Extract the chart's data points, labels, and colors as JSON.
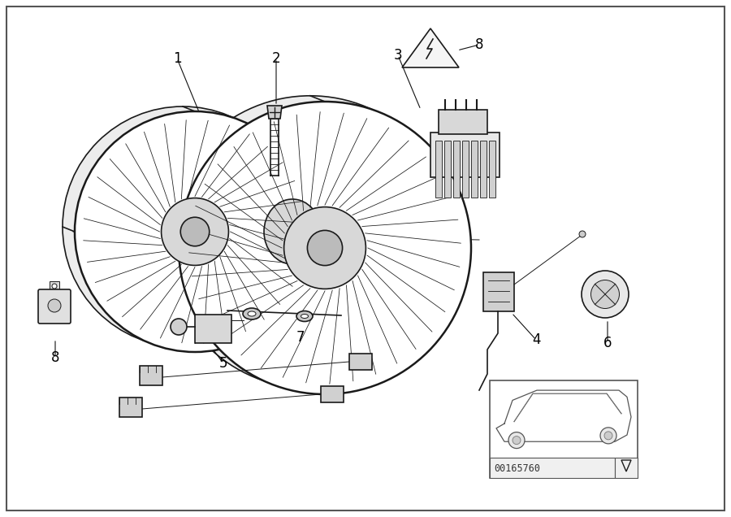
{
  "background_color": "#ffffff",
  "fig_width": 9.0,
  "fig_height": 6.36,
  "dpi": 100,
  "inset_label": "00165760",
  "line_color": "#1a1a1a",
  "text_color": "#000000",
  "label_fontsize": 12,
  "lw_main": 1.2,
  "lw_thin": 0.7,
  "lw_thick": 1.8
}
